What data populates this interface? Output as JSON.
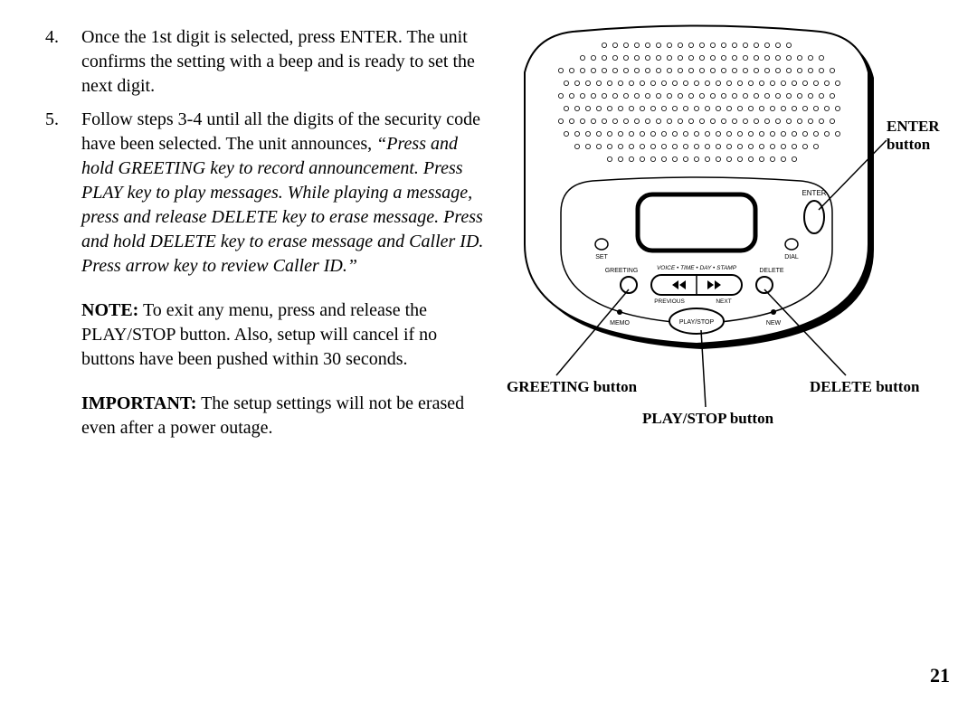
{
  "list": {
    "item4": {
      "num": "4.",
      "text": "Once the 1st digit is selected, press ENTER. The unit confirms the setting with a beep and is ready to set the next digit."
    },
    "item5": {
      "num": "5.",
      "lead": "Follow steps 3-4 until all the digits of the security code have been selected. The unit announces, ",
      "quote": "“Press and hold GREETING key to record announcement. Press PLAY key to play messages. While playing a message, press and release DELETE key to erase message. Press and hold DELETE key to erase message and Caller ID. Press arrow key to review Caller ID.”"
    }
  },
  "note": {
    "label": "NOTE:",
    "text": " To exit any menu, press and release the PLAY/STOP button. Also, setup will cancel if no buttons have been pushed within 30 seconds."
  },
  "important": {
    "label": "IMPORTANT:",
    "text": " The setup settings will not be erased even after a power outage."
  },
  "page_number": "21",
  "callouts": {
    "enter": {
      "line1": "ENTER",
      "line2": "button"
    },
    "greeting": "GREETING button",
    "playstop": "PLAY/STOP button",
    "delete": "DELETE button"
  },
  "device": {
    "labels": {
      "enter": "ENTER",
      "set": "SET",
      "dial": "DIAL",
      "greeting": "GREETING",
      "delete": "DELETE",
      "voice_stamp": "VOICE • TIME • DAY • STAMP",
      "previous": "PREVIOUS",
      "next": "NEXT",
      "memo": "MEMO",
      "new": "NEW",
      "playstop": "PLAY/STOP"
    },
    "colors": {
      "outline": "#000000",
      "fill": "#ffffff",
      "shadow": "#000000"
    },
    "speaker": {
      "rows": 10,
      "cols": 26
    }
  }
}
